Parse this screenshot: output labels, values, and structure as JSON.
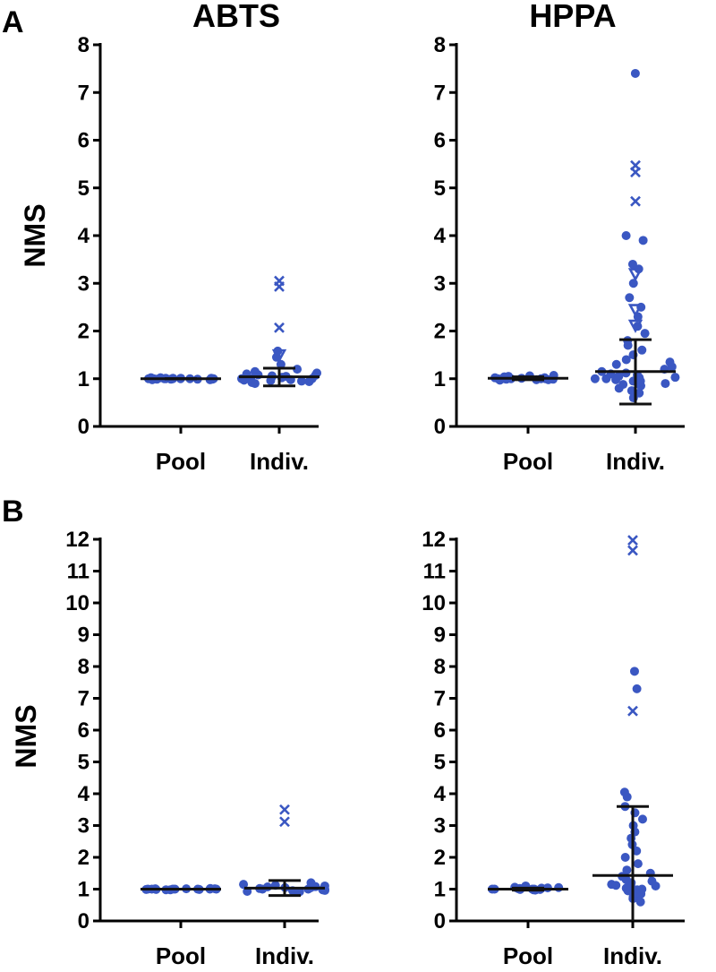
{
  "panels": {
    "A": "A",
    "B": "B"
  },
  "colors": {
    "marker": "#3a57c2",
    "bar": "#111111",
    "axis": "#000000"
  },
  "chart_data": [
    {
      "id": "A-ABTS",
      "type": "scatter",
      "panel": "A",
      "title": "ABTS",
      "ylabel": "NMS",
      "ylim": [
        0,
        8
      ],
      "yticks": [
        0,
        1,
        2,
        3,
        4,
        5,
        6,
        7,
        8
      ],
      "categories": [
        "Pool",
        "Indiv."
      ],
      "groups": [
        {
          "name": "Pool",
          "mean": 1.0,
          "sd_low": 1.0,
          "sd_high": 1.0,
          "points": [
            0.98,
            0.99,
            1.0,
            1.0,
            1.01,
            1.0,
            0.99,
            1.01,
            1.0,
            1.02,
            0.98,
            1.0,
            1.01,
            0.99,
            1.0,
            1.0,
            1.02,
            0.99,
            1.0,
            1.01
          ],
          "outliers": []
        },
        {
          "name": "Indiv.",
          "mean": 1.04,
          "sd_low": 0.85,
          "sd_high": 1.22,
          "points": [
            0.92,
            0.95,
            0.98,
            1.0,
            1.02,
            1.05,
            0.97,
            1.03,
            1.08,
            1.1,
            0.9,
            1.0,
            1.06,
            1.12,
            0.96,
            1.04,
            1.15,
            1.2,
            1.3,
            1.45,
            1.58,
            1.0,
            0.94,
            1.07
          ],
          "outliers": [
            {
              "y": 3.05,
              "m": "x"
            },
            {
              "y": 2.93,
              "m": "x"
            },
            {
              "y": 2.07,
              "m": "x"
            },
            {
              "y": 1.5,
              "m": "tri"
            }
          ]
        }
      ]
    },
    {
      "id": "A-HPPA",
      "type": "scatter",
      "panel": "A",
      "title": "HPPA",
      "ylabel": "",
      "ylim": [
        0,
        8
      ],
      "yticks": [
        0,
        1,
        2,
        3,
        4,
        5,
        6,
        7,
        8
      ],
      "categories": [
        "Pool",
        "Indiv."
      ],
      "groups": [
        {
          "name": "Pool",
          "mean": 1.01,
          "sd_low": 0.98,
          "sd_high": 1.04,
          "points": [
            0.97,
            0.99,
            1.0,
            1.02,
            1.05,
            1.0,
            0.98,
            1.03,
            1.06,
            1.0,
            0.99,
            1.01,
            1.04,
            0.98,
            1.0,
            1.02,
            1.07,
            1.0
          ],
          "outliers": []
        },
        {
          "name": "Indiv.",
          "mean": 1.15,
          "sd_low": 0.47,
          "sd_high": 1.82,
          "points": [
            0.6,
            0.7,
            0.8,
            0.85,
            0.9,
            0.92,
            0.95,
            0.98,
            1.0,
            1.02,
            1.05,
            1.08,
            1.1,
            1.12,
            1.15,
            1.2,
            1.25,
            1.3,
            1.35,
            1.4,
            1.5,
            1.6,
            1.7,
            1.8,
            1.95,
            2.1,
            2.3,
            2.5,
            2.7,
            3.0,
            3.3,
            3.4,
            3.9,
            4.0,
            7.4,
            0.75,
            0.88,
            1.0,
            0.95,
            1.03
          ],
          "outliers": [
            {
              "y": 5.47,
              "m": "x"
            },
            {
              "y": 5.33,
              "m": "x"
            },
            {
              "y": 4.72,
              "m": "x"
            },
            {
              "y": 3.2,
              "m": "tri"
            },
            {
              "y": 2.45,
              "m": "tri"
            },
            {
              "y": 2.12,
              "m": "tri"
            }
          ]
        }
      ]
    },
    {
      "id": "B-ABTS",
      "type": "scatter",
      "panel": "B",
      "title": "",
      "ylabel": "NMS",
      "ylim": [
        0,
        12
      ],
      "yticks": [
        0,
        1,
        2,
        3,
        4,
        5,
        6,
        7,
        8,
        9,
        10,
        11,
        12
      ],
      "categories": [
        "Pool",
        "Indiv."
      ],
      "groups": [
        {
          "name": "Pool",
          "mean": 1.0,
          "sd_low": 1.0,
          "sd_high": 1.0,
          "points": [
            0.98,
            0.99,
            1.0,
            1.0,
            1.01,
            1.0,
            0.99,
            1.01,
            1.0,
            1.0,
            0.98,
            1.02,
            1.0,
            0.99,
            1.0,
            1.01
          ],
          "outliers": []
        },
        {
          "name": "Indiv.",
          "mean": 1.03,
          "sd_low": 0.8,
          "sd_high": 1.27,
          "points": [
            0.9,
            0.95,
            0.98,
            1.0,
            1.02,
            1.05,
            1.08,
            1.1,
            0.93,
            1.0,
            1.12,
            1.15,
            0.96,
            1.04,
            1.0,
            1.07,
            0.92,
            1.2
          ],
          "outliers": [
            {
              "y": 3.5,
              "m": "x"
            },
            {
              "y": 3.12,
              "m": "x"
            }
          ]
        }
      ]
    },
    {
      "id": "B-HPPA",
      "type": "scatter",
      "panel": "B",
      "title": "",
      "ylabel": "",
      "ylim": [
        0,
        12
      ],
      "yticks": [
        0,
        1,
        2,
        3,
        4,
        5,
        6,
        7,
        8,
        9,
        10,
        11,
        12
      ],
      "categories": [
        "Pool",
        "Indiv."
      ],
      "groups": [
        {
          "name": "Pool",
          "mean": 1.0,
          "sd_low": 0.97,
          "sd_high": 1.03,
          "points": [
            0.97,
            0.99,
            1.0,
            1.02,
            1.05,
            1.0,
            0.98,
            1.03,
            1.06,
            1.0,
            0.99,
            1.01,
            1.04,
            1.1,
            1.0
          ],
          "outliers": []
        },
        {
          "name": "Indiv.",
          "mean": 1.43,
          "sd_low": -0.6,
          "sd_high": 3.6,
          "points": [
            0.6,
            0.7,
            0.8,
            0.85,
            0.9,
            0.92,
            0.95,
            0.98,
            1.0,
            1.02,
            1.05,
            1.08,
            1.1,
            1.15,
            1.2,
            1.25,
            1.3,
            1.4,
            1.5,
            1.6,
            1.8,
            2.0,
            2.2,
            2.4,
            2.6,
            2.8,
            3.0,
            3.2,
            3.4,
            3.6,
            3.9,
            4.05,
            7.3,
            7.85,
            0.75,
            0.88,
            1.0,
            0.95,
            1.03,
            1.12
          ],
          "outliers": [
            {
              "y": 11.97,
              "m": "x"
            },
            {
              "y": 11.65,
              "m": "x"
            },
            {
              "y": 6.6,
              "m": "x"
            }
          ]
        }
      ]
    }
  ]
}
